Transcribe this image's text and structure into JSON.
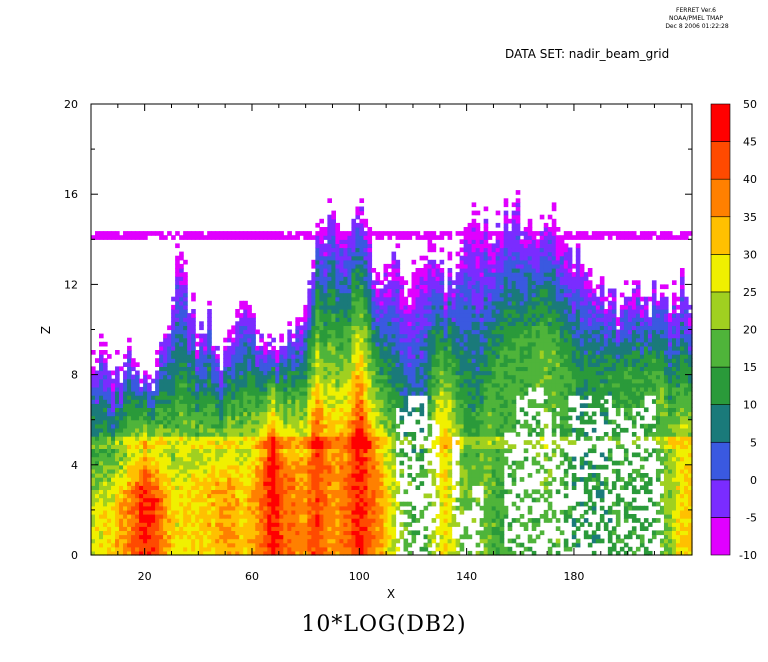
{
  "header": {
    "line1": "FERRET Ver.6",
    "line2": "NOAA/PMEL TMAP",
    "line3": "Dec  8 2006 01:22:28",
    "dataset": "DATA SET: nadir_beam_grid"
  },
  "chart_data": {
    "type": "heatmap",
    "title": "10*LOG(DB2)",
    "xlabel": "X",
    "ylabel": "Z",
    "xlim": [
      0,
      224
    ],
    "ylim": [
      0,
      20
    ],
    "x_ticks": [
      20,
      60,
      100,
      140,
      180
    ],
    "y_ticks": [
      0,
      4,
      8,
      12,
      16,
      20
    ],
    "colorbar": {
      "levels": [
        -10,
        -5,
        0,
        5,
        10,
        15,
        20,
        25,
        30,
        35,
        40,
        45,
        50
      ],
      "colors": [
        "#e000ff",
        "#7a2cff",
        "#3a59e0",
        "#1a7a7a",
        "#2a9a3a",
        "#4fb43a",
        "#a0d020",
        "#f0f000",
        "#ffc000",
        "#ff8000",
        "#ff4a00",
        "#ff0000"
      ]
    },
    "grid": false,
    "columns": [
      {
        "x": 0,
        "top": 10.0,
        "peak": 26,
        "core": 2.0,
        "clear": null
      },
      {
        "x": 8,
        "top": 8.5,
        "peak": 30,
        "core": 2.0,
        "clear": null
      },
      {
        "x": 16,
        "top": 9.5,
        "peak": 40,
        "core": 2.5,
        "clear": null
      },
      {
        "x": 20,
        "top": 8.0,
        "peak": 46,
        "core": 3.0,
        "clear": null
      },
      {
        "x": 24,
        "top": 9.0,
        "peak": 44,
        "core": 2.5,
        "clear": null
      },
      {
        "x": 28,
        "top": 10.5,
        "peak": 34,
        "core": 2.5,
        "clear": null
      },
      {
        "x": 32,
        "top": 13.5,
        "peak": 28,
        "core": 2.5,
        "clear": null
      },
      {
        "x": 36,
        "top": 12.5,
        "peak": 30,
        "core": 3.0,
        "clear": null
      },
      {
        "x": 40,
        "top": 10.0,
        "peak": 30,
        "core": 3.0,
        "clear": null
      },
      {
        "x": 44,
        "top": 11.0,
        "peak": 32,
        "core": 3.0,
        "clear": null
      },
      {
        "x": 48,
        "top": 9.0,
        "peak": 34,
        "core": 3.0,
        "clear": null
      },
      {
        "x": 52,
        "top": 10.5,
        "peak": 36,
        "core": 3.0,
        "clear": null
      },
      {
        "x": 56,
        "top": 12.0,
        "peak": 30,
        "core": 3.0,
        "clear": null
      },
      {
        "x": 60,
        "top": 11.5,
        "peak": 34,
        "core": 3.0,
        "clear": null
      },
      {
        "x": 64,
        "top": 9.0,
        "peak": 40,
        "core": 3.5,
        "clear": null
      },
      {
        "x": 68,
        "top": 10.0,
        "peak": 48,
        "core": 4.5,
        "clear": null
      },
      {
        "x": 72,
        "top": 9.5,
        "peak": 40,
        "core": 3.5,
        "clear": null
      },
      {
        "x": 76,
        "top": 10.5,
        "peak": 38,
        "core": 3.5,
        "clear": null
      },
      {
        "x": 80,
        "top": 12.0,
        "peak": 36,
        "core": 3.5,
        "clear": null
      },
      {
        "x": 84,
        "top": 14.5,
        "peak": 44,
        "core": 5.0,
        "clear": null
      },
      {
        "x": 88,
        "top": 15.0,
        "peak": 38,
        "core": 4.0,
        "clear": null
      },
      {
        "x": 92,
        "top": 15.5,
        "peak": 36,
        "core": 4.0,
        "clear": null
      },
      {
        "x": 96,
        "top": 15.5,
        "peak": 40,
        "core": 4.0,
        "clear": null
      },
      {
        "x": 100,
        "top": 16.0,
        "peak": 48,
        "core": 5.5,
        "clear": null
      },
      {
        "x": 104,
        "top": 14.0,
        "peak": 40,
        "core": 4.0,
        "clear": null
      },
      {
        "x": 108,
        "top": 12.5,
        "peak": 36,
        "core": 3.0,
        "clear": null
      },
      {
        "x": 112,
        "top": 13.5,
        "peak": 26,
        "core": 3.0,
        "clear": null
      },
      {
        "x": 116,
        "top": 13.0,
        "peak": 20,
        "core": 3.0,
        "clear": [
          0,
          6.5
        ]
      },
      {
        "x": 120,
        "top": 12.5,
        "peak": 16,
        "core": 3.0,
        "clear": [
          0,
          7.0
        ]
      },
      {
        "x": 124,
        "top": 13.0,
        "peak": 16,
        "core": 3.0,
        "clear": [
          0,
          7.0
        ]
      },
      {
        "x": 128,
        "top": 13.5,
        "peak": 24,
        "core": 6.0,
        "clear": [
          0,
          6.0
        ]
      },
      {
        "x": 132,
        "top": 12.5,
        "peak": 30,
        "core": 6.0,
        "clear": null
      },
      {
        "x": 136,
        "top": 13.5,
        "peak": 22,
        "core": 6.0,
        "clear": [
          0,
          5.5
        ]
      },
      {
        "x": 140,
        "top": 14.5,
        "peak": 18,
        "core": 4.0,
        "clear": [
          0,
          2.0
        ]
      },
      {
        "x": 144,
        "top": 15.0,
        "peak": 18,
        "core": 4.0,
        "clear": [
          0,
          3.0
        ]
      },
      {
        "x": 148,
        "top": 15.0,
        "peak": 18,
        "core": 6.0,
        "clear": null
      },
      {
        "x": 152,
        "top": 15.0,
        "peak": 16,
        "core": 8.0,
        "clear": null
      },
      {
        "x": 156,
        "top": 15.5,
        "peak": 16,
        "core": 9.0,
        "clear": [
          0,
          5.5
        ]
      },
      {
        "x": 160,
        "top": 15.5,
        "peak": 16,
        "core": 9.0,
        "clear": [
          0,
          7.0
        ]
      },
      {
        "x": 164,
        "top": 15.5,
        "peak": 16,
        "core": 9.5,
        "clear": [
          0,
          7.5
        ]
      },
      {
        "x": 168,
        "top": 15.0,
        "peak": 18,
        "core": 9.5,
        "clear": [
          0,
          7.5
        ]
      },
      {
        "x": 172,
        "top": 15.0,
        "peak": 18,
        "core": 9.0,
        "clear": [
          0,
          6.5
        ]
      },
      {
        "x": 176,
        "top": 14.5,
        "peak": 16,
        "core": 8.5,
        "clear": [
          0,
          5.0
        ]
      },
      {
        "x": 180,
        "top": 14.0,
        "peak": 12,
        "core": 8.0,
        "clear": [
          0,
          7.0
        ]
      },
      {
        "x": 184,
        "top": 13.5,
        "peak": 12,
        "core": 8.0,
        "clear": [
          0,
          7.0
        ]
      },
      {
        "x": 188,
        "top": 12.5,
        "peak": 12,
        "core": 8.0,
        "clear": [
          0,
          6.5
        ]
      },
      {
        "x": 192,
        "top": 12.0,
        "peak": 12,
        "core": 8.0,
        "clear": [
          0,
          7.0
        ]
      },
      {
        "x": 196,
        "top": 11.5,
        "peak": 14,
        "core": 8.0,
        "clear": [
          0,
          6.5
        ]
      },
      {
        "x": 200,
        "top": 11.5,
        "peak": 14,
        "core": 8.0,
        "clear": [
          0,
          6.0
        ]
      },
      {
        "x": 204,
        "top": 12.0,
        "peak": 14,
        "core": 8.0,
        "clear": [
          0,
          6.5
        ]
      },
      {
        "x": 208,
        "top": 12.0,
        "peak": 14,
        "core": 8.0,
        "clear": [
          0,
          7.0
        ]
      },
      {
        "x": 212,
        "top": 12.0,
        "peak": 18,
        "core": 8.0,
        "clear": [
          0,
          5.0
        ]
      },
      {
        "x": 216,
        "top": 12.0,
        "peak": 22,
        "core": 5.0,
        "clear": null
      },
      {
        "x": 220,
        "top": 12.5,
        "peak": 30,
        "core": 4.0,
        "clear": null
      },
      {
        "x": 224,
        "top": 11.5,
        "peak": 30,
        "core": 4.0,
        "clear": null
      }
    ],
    "anvil_layer": {
      "z": 14.2,
      "value": -7,
      "x_range": [
        0,
        224
      ]
    },
    "melting_layer": {
      "z": 5.0,
      "boost": 6,
      "x_range": [
        0,
        224
      ]
    }
  }
}
